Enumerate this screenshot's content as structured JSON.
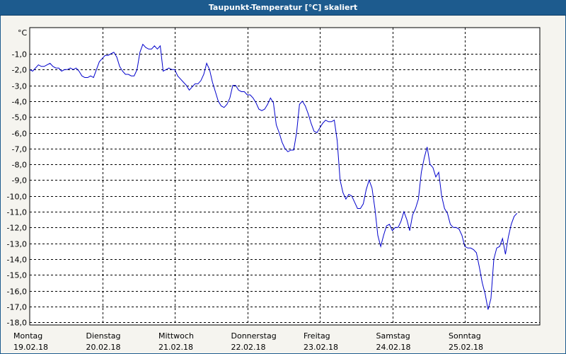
{
  "window": {
    "title": "Taupunkt-Temperatur [°C] skaliert"
  },
  "chart_data": {
    "type": "line",
    "title": "Taupunkt-Temperatur [°C] skaliert",
    "ylabel": "°C",
    "ylim": [
      -18,
      1
    ],
    "yticks": [
      -1,
      -2,
      -3,
      -4,
      -5,
      -6,
      -7,
      -8,
      -9,
      -10,
      -11,
      -12,
      -13,
      -14,
      -15,
      -16,
      -17,
      -18
    ],
    "ytick_labels": [
      "-1,0",
      "-2,0",
      "-3,0",
      "-4,0",
      "-5,0",
      "-6,0",
      "-7,0",
      "-8,0",
      "-9,0",
      "-10,0",
      "-11,0",
      "-12,0",
      "-13,0",
      "-14,0",
      "-15,0",
      "-16,0",
      "-17,0",
      "-18,0"
    ],
    "x_days": [
      {
        "day": "Montag",
        "date": "19.02.18"
      },
      {
        "day": "Dienstag",
        "date": "20.02.18"
      },
      {
        "day": "Mittwoch",
        "date": "21.02.18"
      },
      {
        "day": "Donnerstag",
        "date": "22.02.18"
      },
      {
        "day": "Freitag",
        "date": "23.02.18"
      },
      {
        "day": "Samstag",
        "date": "24.02.18"
      },
      {
        "day": "Sonntag",
        "date": "25.02.18"
      }
    ],
    "xlim_days": [
      0,
      7
    ],
    "grid": true,
    "line_color": "#0000cc",
    "series": [
      {
        "values": [
          [
            0.0,
            -2.0
          ],
          [
            0.04,
            -2.1
          ],
          [
            0.08,
            -1.9
          ],
          [
            0.12,
            -1.7
          ],
          [
            0.16,
            -1.8
          ],
          [
            0.2,
            -1.8
          ],
          [
            0.24,
            -1.7
          ],
          [
            0.28,
            -1.6
          ],
          [
            0.32,
            -1.8
          ],
          [
            0.36,
            -1.9
          ],
          [
            0.4,
            -1.9
          ],
          [
            0.44,
            -2.1
          ],
          [
            0.48,
            -2.0
          ],
          [
            0.52,
            -2.0
          ],
          [
            0.56,
            -1.9
          ],
          [
            0.6,
            -2.0
          ],
          [
            0.64,
            -1.9
          ],
          [
            0.68,
            -2.1
          ],
          [
            0.72,
            -2.4
          ],
          [
            0.76,
            -2.5
          ],
          [
            0.8,
            -2.5
          ],
          [
            0.84,
            -2.4
          ],
          [
            0.88,
            -2.5
          ],
          [
            0.92,
            -2.0
          ],
          [
            0.96,
            -1.5
          ],
          [
            1.0,
            -1.3
          ],
          [
            1.04,
            -1.1
          ],
          [
            1.08,
            -1.1
          ],
          [
            1.12,
            -1.0
          ],
          [
            1.16,
            -0.9
          ],
          [
            1.2,
            -1.2
          ],
          [
            1.24,
            -1.8
          ],
          [
            1.28,
            -2.1
          ],
          [
            1.32,
            -2.3
          ],
          [
            1.36,
            -2.3
          ],
          [
            1.4,
            -2.4
          ],
          [
            1.44,
            -2.4
          ],
          [
            1.48,
            -2.0
          ],
          [
            1.52,
            -0.9
          ],
          [
            1.56,
            -0.4
          ],
          [
            1.6,
            -0.6
          ],
          [
            1.64,
            -0.7
          ],
          [
            1.68,
            -0.7
          ],
          [
            1.72,
            -0.5
          ],
          [
            1.76,
            -0.7
          ],
          [
            1.8,
            -0.5
          ],
          [
            1.84,
            -2.1
          ],
          [
            1.88,
            -2.0
          ],
          [
            1.92,
            -1.9
          ],
          [
            1.96,
            -2.0
          ],
          [
            2.0,
            -2.0
          ],
          [
            2.04,
            -2.4
          ],
          [
            2.08,
            -2.6
          ],
          [
            2.12,
            -2.8
          ],
          [
            2.16,
            -3.0
          ],
          [
            2.2,
            -3.3
          ],
          [
            2.24,
            -3.1
          ],
          [
            2.28,
            -2.9
          ],
          [
            2.32,
            -2.9
          ],
          [
            2.36,
            -2.7
          ],
          [
            2.4,
            -2.3
          ],
          [
            2.44,
            -1.6
          ],
          [
            2.48,
            -2.0
          ],
          [
            2.52,
            -2.8
          ],
          [
            2.56,
            -3.4
          ],
          [
            2.6,
            -4.0
          ],
          [
            2.64,
            -4.3
          ],
          [
            2.68,
            -4.4
          ],
          [
            2.72,
            -4.2
          ],
          [
            2.76,
            -3.8
          ],
          [
            2.8,
            -3.0
          ],
          [
            2.84,
            -3.0
          ],
          [
            2.88,
            -3.3
          ],
          [
            2.92,
            -3.4
          ],
          [
            2.96,
            -3.4
          ],
          [
            3.0,
            -3.6
          ],
          [
            3.04,
            -3.6
          ],
          [
            3.08,
            -3.8
          ],
          [
            3.12,
            -4.1
          ],
          [
            3.16,
            -4.5
          ],
          [
            3.2,
            -4.6
          ],
          [
            3.24,
            -4.5
          ],
          [
            3.28,
            -4.2
          ],
          [
            3.32,
            -3.8
          ],
          [
            3.36,
            -4.1
          ],
          [
            3.4,
            -5.5
          ],
          [
            3.44,
            -6.0
          ],
          [
            3.48,
            -6.6
          ],
          [
            3.52,
            -7.0
          ],
          [
            3.56,
            -7.2
          ],
          [
            3.6,
            -7.1
          ],
          [
            3.64,
            -7.1
          ],
          [
            3.68,
            -6.0
          ],
          [
            3.72,
            -4.2
          ],
          [
            3.76,
            -4.0
          ],
          [
            3.8,
            -4.3
          ],
          [
            3.84,
            -4.8
          ],
          [
            3.88,
            -5.4
          ],
          [
            3.92,
            -5.9
          ],
          [
            3.96,
            -6.0
          ],
          [
            4.0,
            -5.7
          ],
          [
            4.04,
            -5.4
          ],
          [
            4.08,
            -5.2
          ],
          [
            4.12,
            -5.3
          ],
          [
            4.16,
            -5.3
          ],
          [
            4.2,
            -5.2
          ],
          [
            4.24,
            -6.5
          ],
          [
            4.28,
            -9.0
          ],
          [
            4.32,
            -9.8
          ],
          [
            4.36,
            -10.2
          ],
          [
            4.4,
            -9.9
          ],
          [
            4.44,
            -10.0
          ],
          [
            4.48,
            -10.4
          ],
          [
            4.52,
            -10.8
          ],
          [
            4.56,
            -10.8
          ],
          [
            4.6,
            -10.5
          ],
          [
            4.64,
            -9.6
          ],
          [
            4.68,
            -9.0
          ],
          [
            4.72,
            -9.5
          ],
          [
            4.76,
            -10.8
          ],
          [
            4.8,
            -12.5
          ],
          [
            4.84,
            -13.2
          ],
          [
            4.88,
            -12.5
          ],
          [
            4.92,
            -11.9
          ],
          [
            4.96,
            -11.8
          ],
          [
            5.0,
            -12.2
          ],
          [
            5.04,
            -12.0
          ],
          [
            5.08,
            -12.0
          ],
          [
            5.12,
            -11.6
          ],
          [
            5.16,
            -11.0
          ],
          [
            5.2,
            -11.5
          ],
          [
            5.24,
            -12.2
          ],
          [
            5.28,
            -11.2
          ],
          [
            5.32,
            -10.8
          ],
          [
            5.36,
            -10.2
          ],
          [
            5.4,
            -8.5
          ],
          [
            5.44,
            -7.6
          ],
          [
            5.48,
            -6.9
          ],
          [
            5.52,
            -8.0
          ],
          [
            5.56,
            -8.2
          ],
          [
            5.6,
            -8.8
          ],
          [
            5.64,
            -8.5
          ],
          [
            5.68,
            -10.0
          ],
          [
            5.72,
            -10.8
          ],
          [
            5.76,
            -11.1
          ],
          [
            5.8,
            -11.8
          ],
          [
            5.84,
            -12.0
          ],
          [
            5.88,
            -12.0
          ],
          [
            5.92,
            -12.1
          ],
          [
            5.96,
            -12.5
          ],
          [
            6.0,
            -13.2
          ],
          [
            6.04,
            -13.3
          ],
          [
            6.08,
            -13.3
          ],
          [
            6.12,
            -13.4
          ],
          [
            6.16,
            -13.6
          ],
          [
            6.2,
            -14.5
          ],
          [
            6.24,
            -15.5
          ],
          [
            6.28,
            -16.2
          ],
          [
            6.32,
            -17.2
          ],
          [
            6.36,
            -16.5
          ],
          [
            6.4,
            -14.0
          ],
          [
            6.44,
            -13.3
          ],
          [
            6.48,
            -13.2
          ],
          [
            6.52,
            -12.7
          ],
          [
            6.56,
            -13.7
          ],
          [
            6.6,
            -12.6
          ],
          [
            6.64,
            -11.8
          ],
          [
            6.68,
            -11.3
          ],
          [
            6.72,
            -11.1
          ]
        ]
      }
    ]
  }
}
